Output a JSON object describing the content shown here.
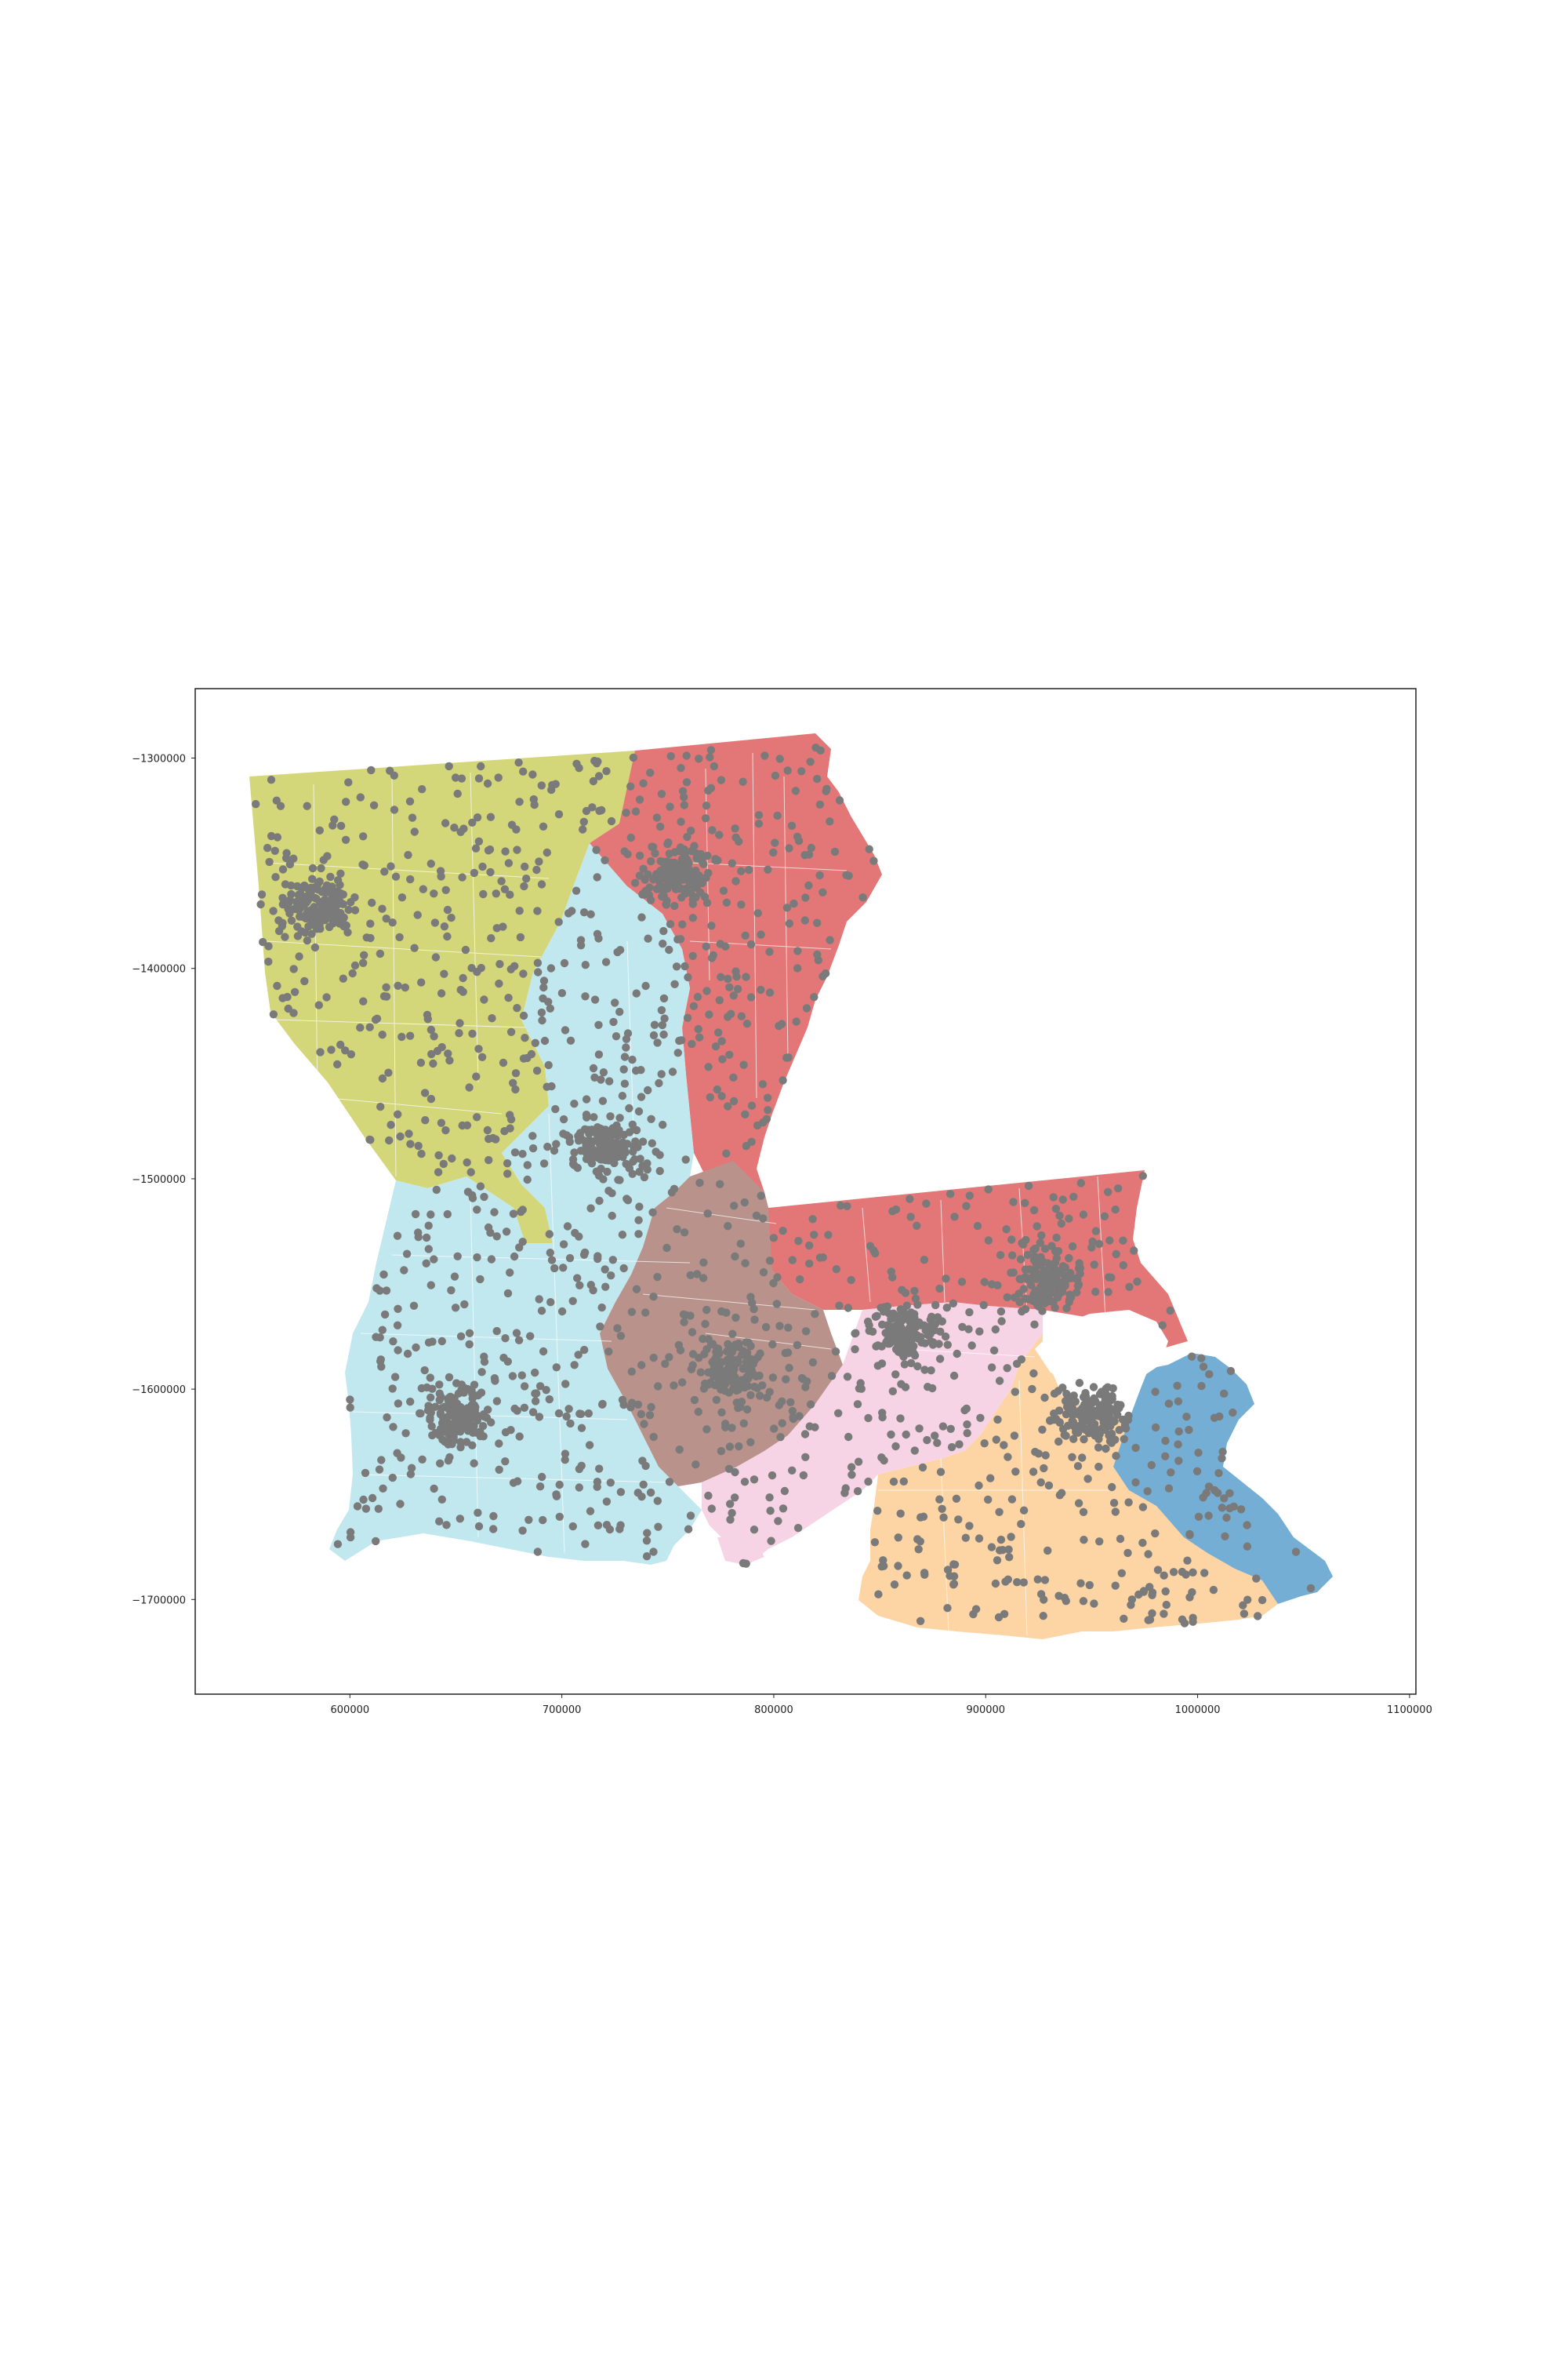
{
  "chart_data": {
    "type": "scatter",
    "title": "",
    "xlabel": "",
    "ylabel": "",
    "xlim": [
      527000,
      1103000
    ],
    "ylim": [
      -1745000,
      -1267000
    ],
    "x_ticks": [
      600000,
      700000,
      800000,
      900000,
      1000000,
      1100000
    ],
    "y_ticks": [
      -1300000,
      -1400000,
      -1500000,
      -1600000,
      -1700000
    ],
    "x_tick_labels": [
      "600000",
      "700000",
      "800000",
      "900000",
      "1000000",
      "1100000"
    ],
    "y_tick_labels": [
      "−1300000",
      "−1400000",
      "−1500000",
      "−1600000",
      "−1700000"
    ],
    "grid": false,
    "legend": "none",
    "point_color": "#7a7a7a",
    "regions": [
      {
        "color": "#d4d67a"
      },
      {
        "color": "#e37777"
      },
      {
        "color": "#c2e8ef"
      },
      {
        "color": "#b8928b"
      },
      {
        "color": "#f7d3e6"
      },
      {
        "color": "#fdd5a5"
      },
      {
        "color": "#74aed4"
      }
    ],
    "dense_clusters": [
      {
        "x": 585000,
        "y": -1370000
      },
      {
        "x": 720000,
        "y": -1485000
      },
      {
        "x": 650000,
        "y": -1612000
      },
      {
        "x": 780000,
        "y": -1590000
      },
      {
        "x": 862000,
        "y": -1572000
      },
      {
        "x": 948000,
        "y": -1612000
      },
      {
        "x": 755000,
        "y": -1355000
      },
      {
        "x": 930000,
        "y": -1548000
      }
    ]
  }
}
